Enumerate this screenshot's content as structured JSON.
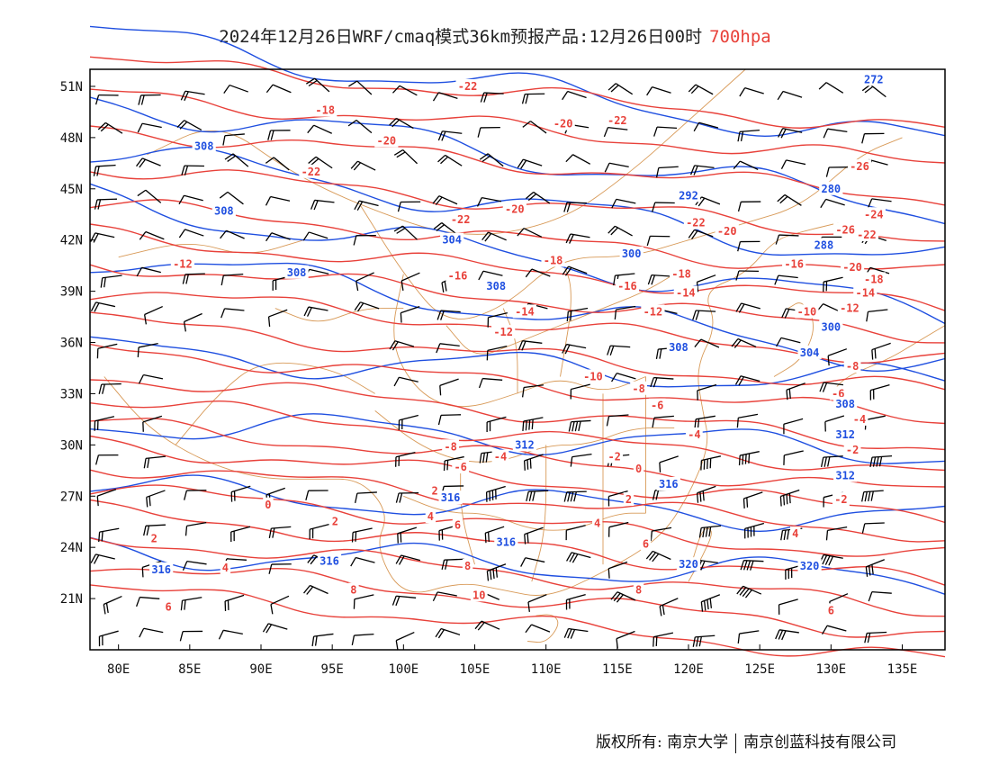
{
  "title": {
    "main": "2024年12月26日WRF/cmaq模式36km预报产品:12月26日00时",
    "level": "700hpa"
  },
  "axes": {
    "lat_labels": [
      "51N",
      "48N",
      "45N",
      "42N",
      "39N",
      "36N",
      "33N",
      "30N",
      "27N",
      "24N",
      "21N"
    ],
    "lat_values": [
      51,
      48,
      45,
      42,
      39,
      36,
      33,
      30,
      27,
      24,
      21
    ],
    "lon_labels": [
      "80E",
      "85E",
      "90E",
      "95E",
      "100E",
      "105E",
      "110E",
      "115E",
      "120E",
      "125E",
      "130E",
      "135E"
    ],
    "lon_values": [
      80,
      85,
      90,
      95,
      100,
      105,
      110,
      115,
      120,
      125,
      130,
      135
    ],
    "lon_range": [
      78,
      138
    ],
    "lat_range": [
      18,
      52
    ]
  },
  "colors": {
    "temperature": "#e8413a",
    "geopotential": "#1f4fe0",
    "border": "#d89a58",
    "wind": "#000000",
    "frame": "#000000"
  },
  "temperature_labels": [
    {
      "text": "-22",
      "lon": 104.5,
      "lat": 51.0
    },
    {
      "text": "-18",
      "lon": 94.5,
      "lat": 49.6
    },
    {
      "text": "-20",
      "lon": 98.8,
      "lat": 47.8
    },
    {
      "text": "-20",
      "lon": 111.2,
      "lat": 48.8
    },
    {
      "text": "-22",
      "lon": 115.0,
      "lat": 49.0
    },
    {
      "text": "-22",
      "lon": 93.5,
      "lat": 46.0
    },
    {
      "text": "-22",
      "lon": 104.0,
      "lat": 43.2
    },
    {
      "text": "-20",
      "lon": 107.8,
      "lat": 43.8
    },
    {
      "text": "-22",
      "lon": 120.5,
      "lat": 43.0
    },
    {
      "text": "-20",
      "lon": 122.7,
      "lat": 42.5
    },
    {
      "text": "-18",
      "lon": 110.5,
      "lat": 40.8
    },
    {
      "text": "-16",
      "lon": 103.8,
      "lat": 39.9
    },
    {
      "text": "-12",
      "lon": 84.5,
      "lat": 40.6
    },
    {
      "text": "-18",
      "lon": 119.5,
      "lat": 40.0
    },
    {
      "text": "-16",
      "lon": 115.7,
      "lat": 39.3
    },
    {
      "text": "-14",
      "lon": 119.8,
      "lat": 38.9
    },
    {
      "text": "-14",
      "lon": 108.5,
      "lat": 37.8
    },
    {
      "text": "-12",
      "lon": 117.5,
      "lat": 37.8
    },
    {
      "text": "-12",
      "lon": 107.0,
      "lat": 36.6
    },
    {
      "text": "-10",
      "lon": 113.3,
      "lat": 34.0
    },
    {
      "text": "-8",
      "lon": 116.5,
      "lat": 33.3
    },
    {
      "text": "-6",
      "lon": 117.8,
      "lat": 32.3
    },
    {
      "text": "-4",
      "lon": 120.4,
      "lat": 30.6
    },
    {
      "text": "-8",
      "lon": 103.3,
      "lat": 29.9
    },
    {
      "text": "-6",
      "lon": 104.0,
      "lat": 28.7
    },
    {
      "text": "-4",
      "lon": 106.8,
      "lat": 29.3
    },
    {
      "text": "-2",
      "lon": 114.8,
      "lat": 29.3
    },
    {
      "text": "0",
      "lon": 116.5,
      "lat": 28.6
    },
    {
      "text": "2",
      "lon": 102.2,
      "lat": 27.3
    },
    {
      "text": "2",
      "lon": 115.8,
      "lat": 26.8
    },
    {
      "text": "0",
      "lon": 90.5,
      "lat": 26.5
    },
    {
      "text": "2",
      "lon": 95.2,
      "lat": 25.5
    },
    {
      "text": "4",
      "lon": 101.9,
      "lat": 25.8
    },
    {
      "text": "6",
      "lon": 103.8,
      "lat": 25.3
    },
    {
      "text": "4",
      "lon": 113.6,
      "lat": 25.4
    },
    {
      "text": "2",
      "lon": 82.5,
      "lat": 24.5
    },
    {
      "text": "4",
      "lon": 87.5,
      "lat": 22.8
    },
    {
      "text": "6",
      "lon": 117.0,
      "lat": 24.2
    },
    {
      "text": "8",
      "lon": 104.5,
      "lat": 22.9
    },
    {
      "text": "8",
      "lon": 96.5,
      "lat": 21.5
    },
    {
      "text": "6",
      "lon": 83.5,
      "lat": 20.5
    },
    {
      "text": "10",
      "lon": 105.3,
      "lat": 21.2
    },
    {
      "text": "8",
      "lon": 116.5,
      "lat": 21.5
    },
    {
      "text": "4",
      "lon": 127.5,
      "lat": 24.8
    },
    {
      "text": "6",
      "lon": 130.0,
      "lat": 20.3
    },
    {
      "text": "-2",
      "lon": 130.7,
      "lat": 26.8
    },
    {
      "text": "-2",
      "lon": 131.5,
      "lat": 29.7
    },
    {
      "text": "-4",
      "lon": 132.0,
      "lat": 31.5
    },
    {
      "text": "-6",
      "lon": 130.5,
      "lat": 33.0
    },
    {
      "text": "-8",
      "lon": 131.5,
      "lat": 34.6
    },
    {
      "text": "-10",
      "lon": 128.3,
      "lat": 37.8
    },
    {
      "text": "-12",
      "lon": 131.3,
      "lat": 38.0
    },
    {
      "text": "-14",
      "lon": 132.4,
      "lat": 38.9
    },
    {
      "text": "-16",
      "lon": 127.4,
      "lat": 40.6
    },
    {
      "text": "-18",
      "lon": 133.0,
      "lat": 39.7
    },
    {
      "text": "-20",
      "lon": 131.5,
      "lat": 40.4
    },
    {
      "text": "-22",
      "lon": 132.5,
      "lat": 42.3
    },
    {
      "text": "-24",
      "lon": 133.0,
      "lat": 43.5
    },
    {
      "text": "-26",
      "lon": 132.0,
      "lat": 46.3
    },
    {
      "text": "-26",
      "lon": 131.0,
      "lat": 42.6
    }
  ],
  "geopotential_labels": [
    {
      "text": "272",
      "lon": 133.0,
      "lat": 51.4
    },
    {
      "text": "308",
      "lon": 86.0,
      "lat": 47.5
    },
    {
      "text": "308",
      "lon": 87.4,
      "lat": 43.7
    },
    {
      "text": "304",
      "lon": 103.4,
      "lat": 42.0
    },
    {
      "text": "308",
      "lon": 92.5,
      "lat": 40.1
    },
    {
      "text": "308",
      "lon": 106.5,
      "lat": 39.3
    },
    {
      "text": "300",
      "lon": 116.0,
      "lat": 41.2
    },
    {
      "text": "292",
      "lon": 120.0,
      "lat": 44.6
    },
    {
      "text": "280",
      "lon": 130.0,
      "lat": 45.0
    },
    {
      "text": "288",
      "lon": 129.5,
      "lat": 41.7
    },
    {
      "text": "300",
      "lon": 130.0,
      "lat": 36.9
    },
    {
      "text": "304",
      "lon": 128.5,
      "lat": 35.4
    },
    {
      "text": "308",
      "lon": 119.3,
      "lat": 35.7
    },
    {
      "text": "308",
      "lon": 131.0,
      "lat": 32.4
    },
    {
      "text": "312",
      "lon": 108.5,
      "lat": 30.0
    },
    {
      "text": "312",
      "lon": 131.0,
      "lat": 30.6
    },
    {
      "text": "316",
      "lon": 103.3,
      "lat": 26.9
    },
    {
      "text": "316",
      "lon": 118.6,
      "lat": 27.7
    },
    {
      "text": "312",
      "lon": 131.0,
      "lat": 28.2
    },
    {
      "text": "316",
      "lon": 107.2,
      "lat": 24.3
    },
    {
      "text": "316",
      "lon": 83.0,
      "lat": 22.7
    },
    {
      "text": "316",
      "lon": 94.8,
      "lat": 23.2
    },
    {
      "text": "320",
      "lon": 120.0,
      "lat": 23.0
    },
    {
      "text": "320",
      "lon": 128.5,
      "lat": 22.9
    }
  ],
  "footer": {
    "left": "版权所有: 南京大学",
    "right": "南京创蓝科技有限公司"
  }
}
